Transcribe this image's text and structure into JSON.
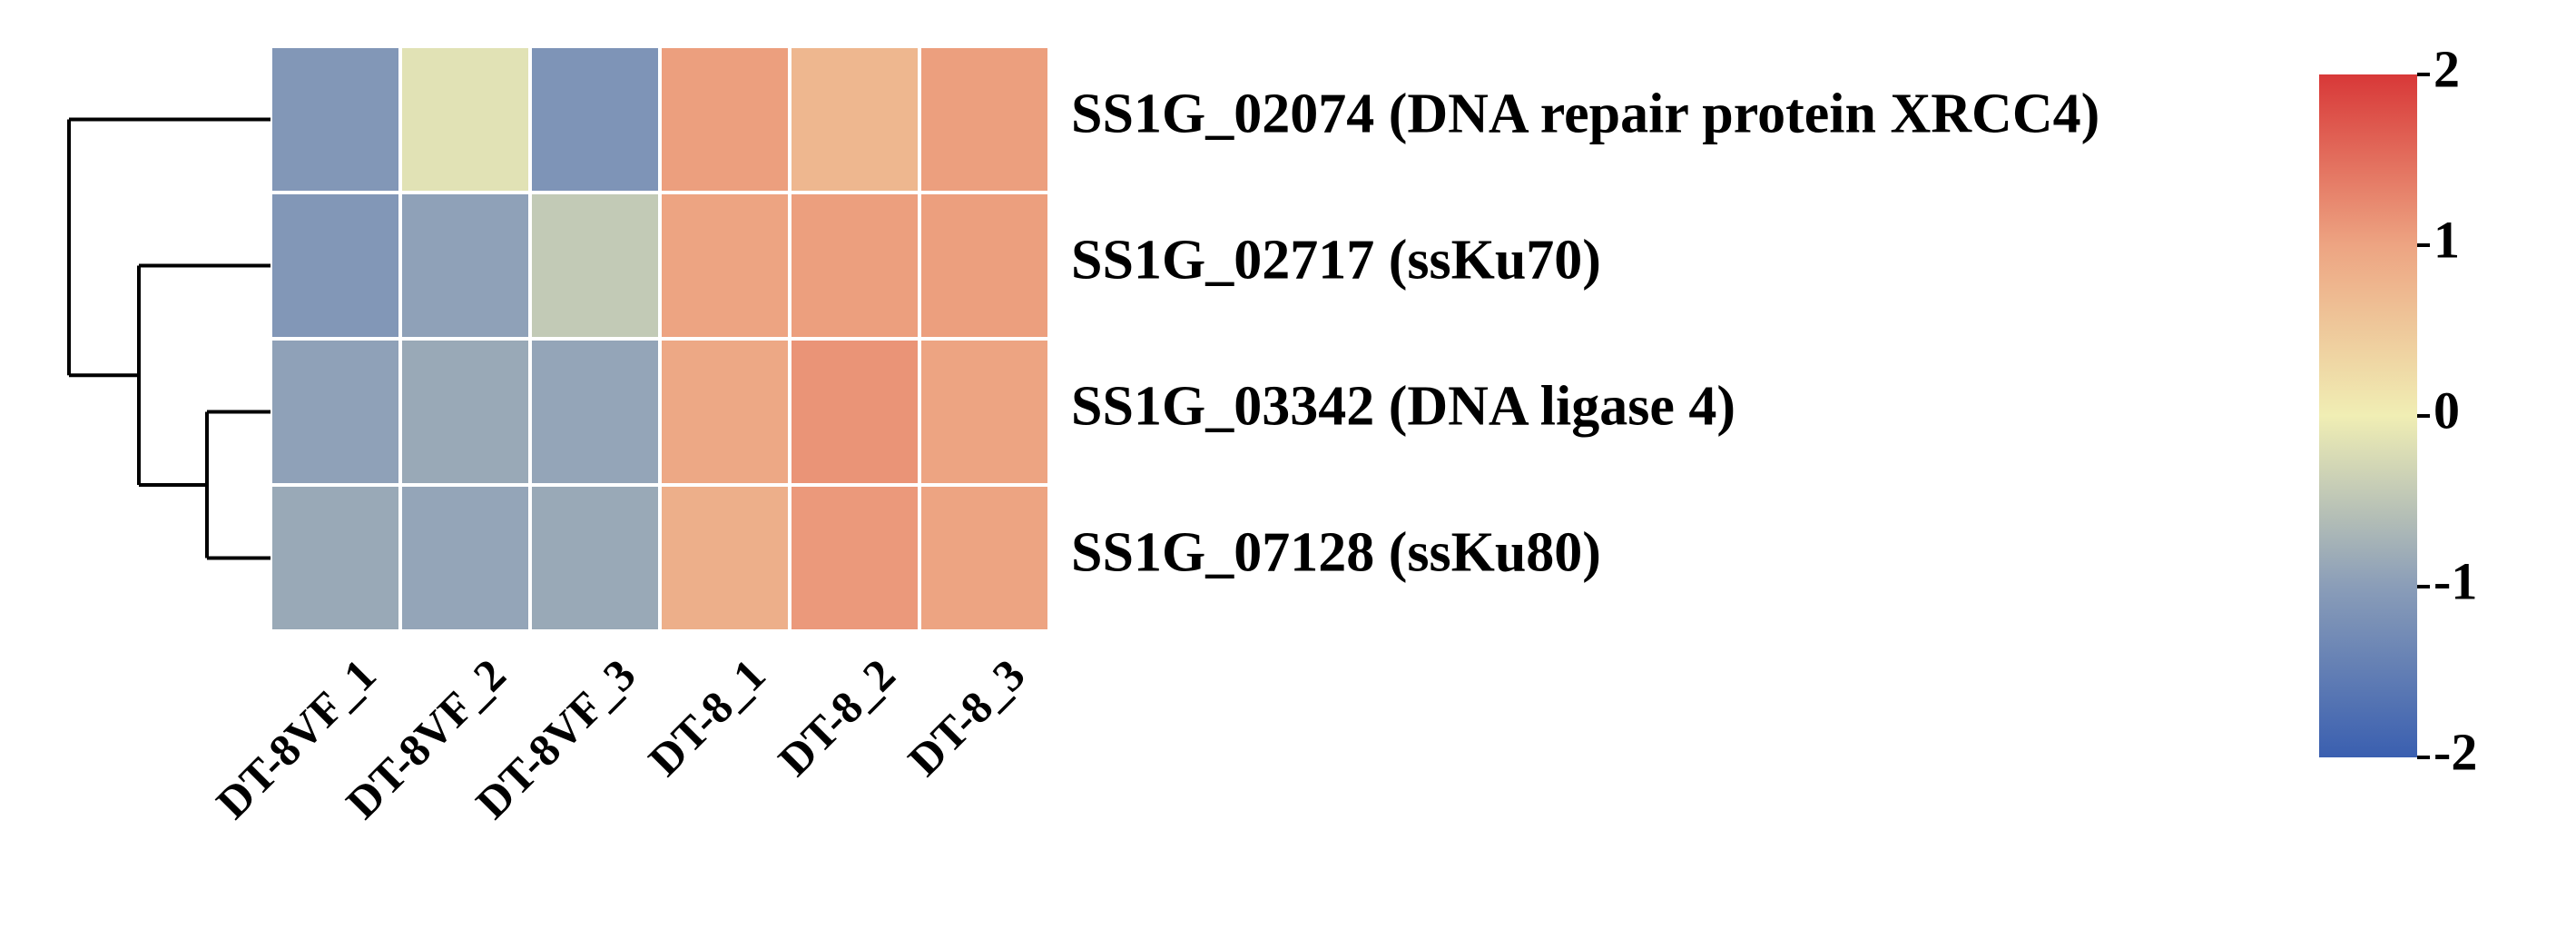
{
  "chart_data": {
    "type": "heatmap",
    "title": "",
    "xlabel": "",
    "ylabel": "",
    "columns": [
      "DT-8VF_1",
      "DT-8VF_2",
      "DT-8VF_3",
      "DT-8_1",
      "DT-8_2",
      "DT-8_3"
    ],
    "rows": [
      "SS1G_02074 (DNA repair protein XRCC4)",
      "SS1G_02717 (ssKu70)",
      "SS1G_03342 (DNA ligase 4)",
      "SS1G_07128 (ssKu80)"
    ],
    "values": [
      [
        -1.1,
        -0.15,
        -1.15,
        1.05,
        0.75,
        1.05
      ],
      [
        -1.1,
        -0.95,
        -0.45,
        1.0,
        1.05,
        1.05
      ],
      [
        -0.95,
        -0.85,
        -0.9,
        0.95,
        1.15,
        1.0
      ],
      [
        -0.85,
        -0.9,
        -0.85,
        0.85,
        1.1,
        1.0
      ]
    ],
    "color_scale": {
      "min": -2,
      "max": 2,
      "ticks": [
        "2",
        "1",
        "0",
        "-1",
        "-2"
      ],
      "stops": [
        "#3a5fb0",
        "#8a9db8",
        "#f0eeb4",
        "#eda482",
        "#d83838"
      ]
    },
    "dendrogram": "rows clustered: row 1 joins last; row 2 joins the cluster of rows 3 and 4",
    "grid_color": "#ffffff"
  }
}
